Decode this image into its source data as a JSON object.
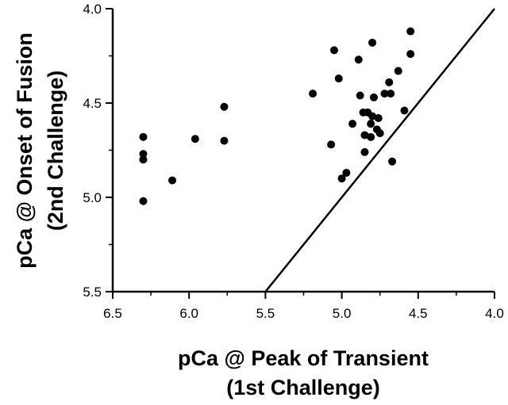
{
  "chart_data": {
    "type": "scatter",
    "xlabel": [
      "pCa @ Peak of Transient",
      "(1st Challenge)"
    ],
    "ylabel": [
      "pCa @ Onset of Fusion",
      "(2nd Challenge)"
    ],
    "xlim": [
      6.5,
      4.0
    ],
    "ylim": [
      5.5,
      4.0
    ],
    "x_reversed": true,
    "y_reversed": true,
    "xticks": [
      "6.5",
      "6.0",
      "5.5",
      "5.0",
      "4.5",
      "4.0"
    ],
    "yticks": [
      "4.0",
      "4.5",
      "5.0",
      "5.5"
    ],
    "grid": false,
    "reference_line": {
      "from": [
        5.5,
        5.5
      ],
      "to": [
        4.0,
        4.0
      ]
    },
    "points": [
      [
        6.3,
        4.68
      ],
      [
        6.3,
        4.77
      ],
      [
        6.3,
        4.8
      ],
      [
        6.3,
        5.02
      ],
      [
        6.11,
        4.91
      ],
      [
        5.96,
        4.69
      ],
      [
        5.77,
        4.52
      ],
      [
        5.77,
        4.7
      ],
      [
        5.19,
        4.45
      ],
      [
        5.07,
        4.72
      ],
      [
        5.05,
        4.22
      ],
      [
        5.02,
        4.37
      ],
      [
        5.0,
        4.9
      ],
      [
        4.97,
        4.87
      ],
      [
        4.93,
        4.61
      ],
      [
        4.89,
        4.27
      ],
      [
        4.88,
        4.46
      ],
      [
        4.86,
        4.55
      ],
      [
        4.85,
        4.67
      ],
      [
        4.85,
        4.76
      ],
      [
        4.83,
        4.55
      ],
      [
        4.81,
        4.61
      ],
      [
        4.81,
        4.68
      ],
      [
        4.8,
        4.18
      ],
      [
        4.8,
        4.57
      ],
      [
        4.79,
        4.47
      ],
      [
        4.77,
        4.64
      ],
      [
        4.76,
        4.58
      ],
      [
        4.75,
        4.66
      ],
      [
        4.72,
        4.45
      ],
      [
        4.69,
        4.39
      ],
      [
        4.68,
        4.45
      ],
      [
        4.67,
        4.81
      ],
      [
        4.63,
        4.33
      ],
      [
        4.59,
        4.54
      ],
      [
        4.55,
        4.24
      ],
      [
        4.55,
        4.12
      ]
    ]
  }
}
